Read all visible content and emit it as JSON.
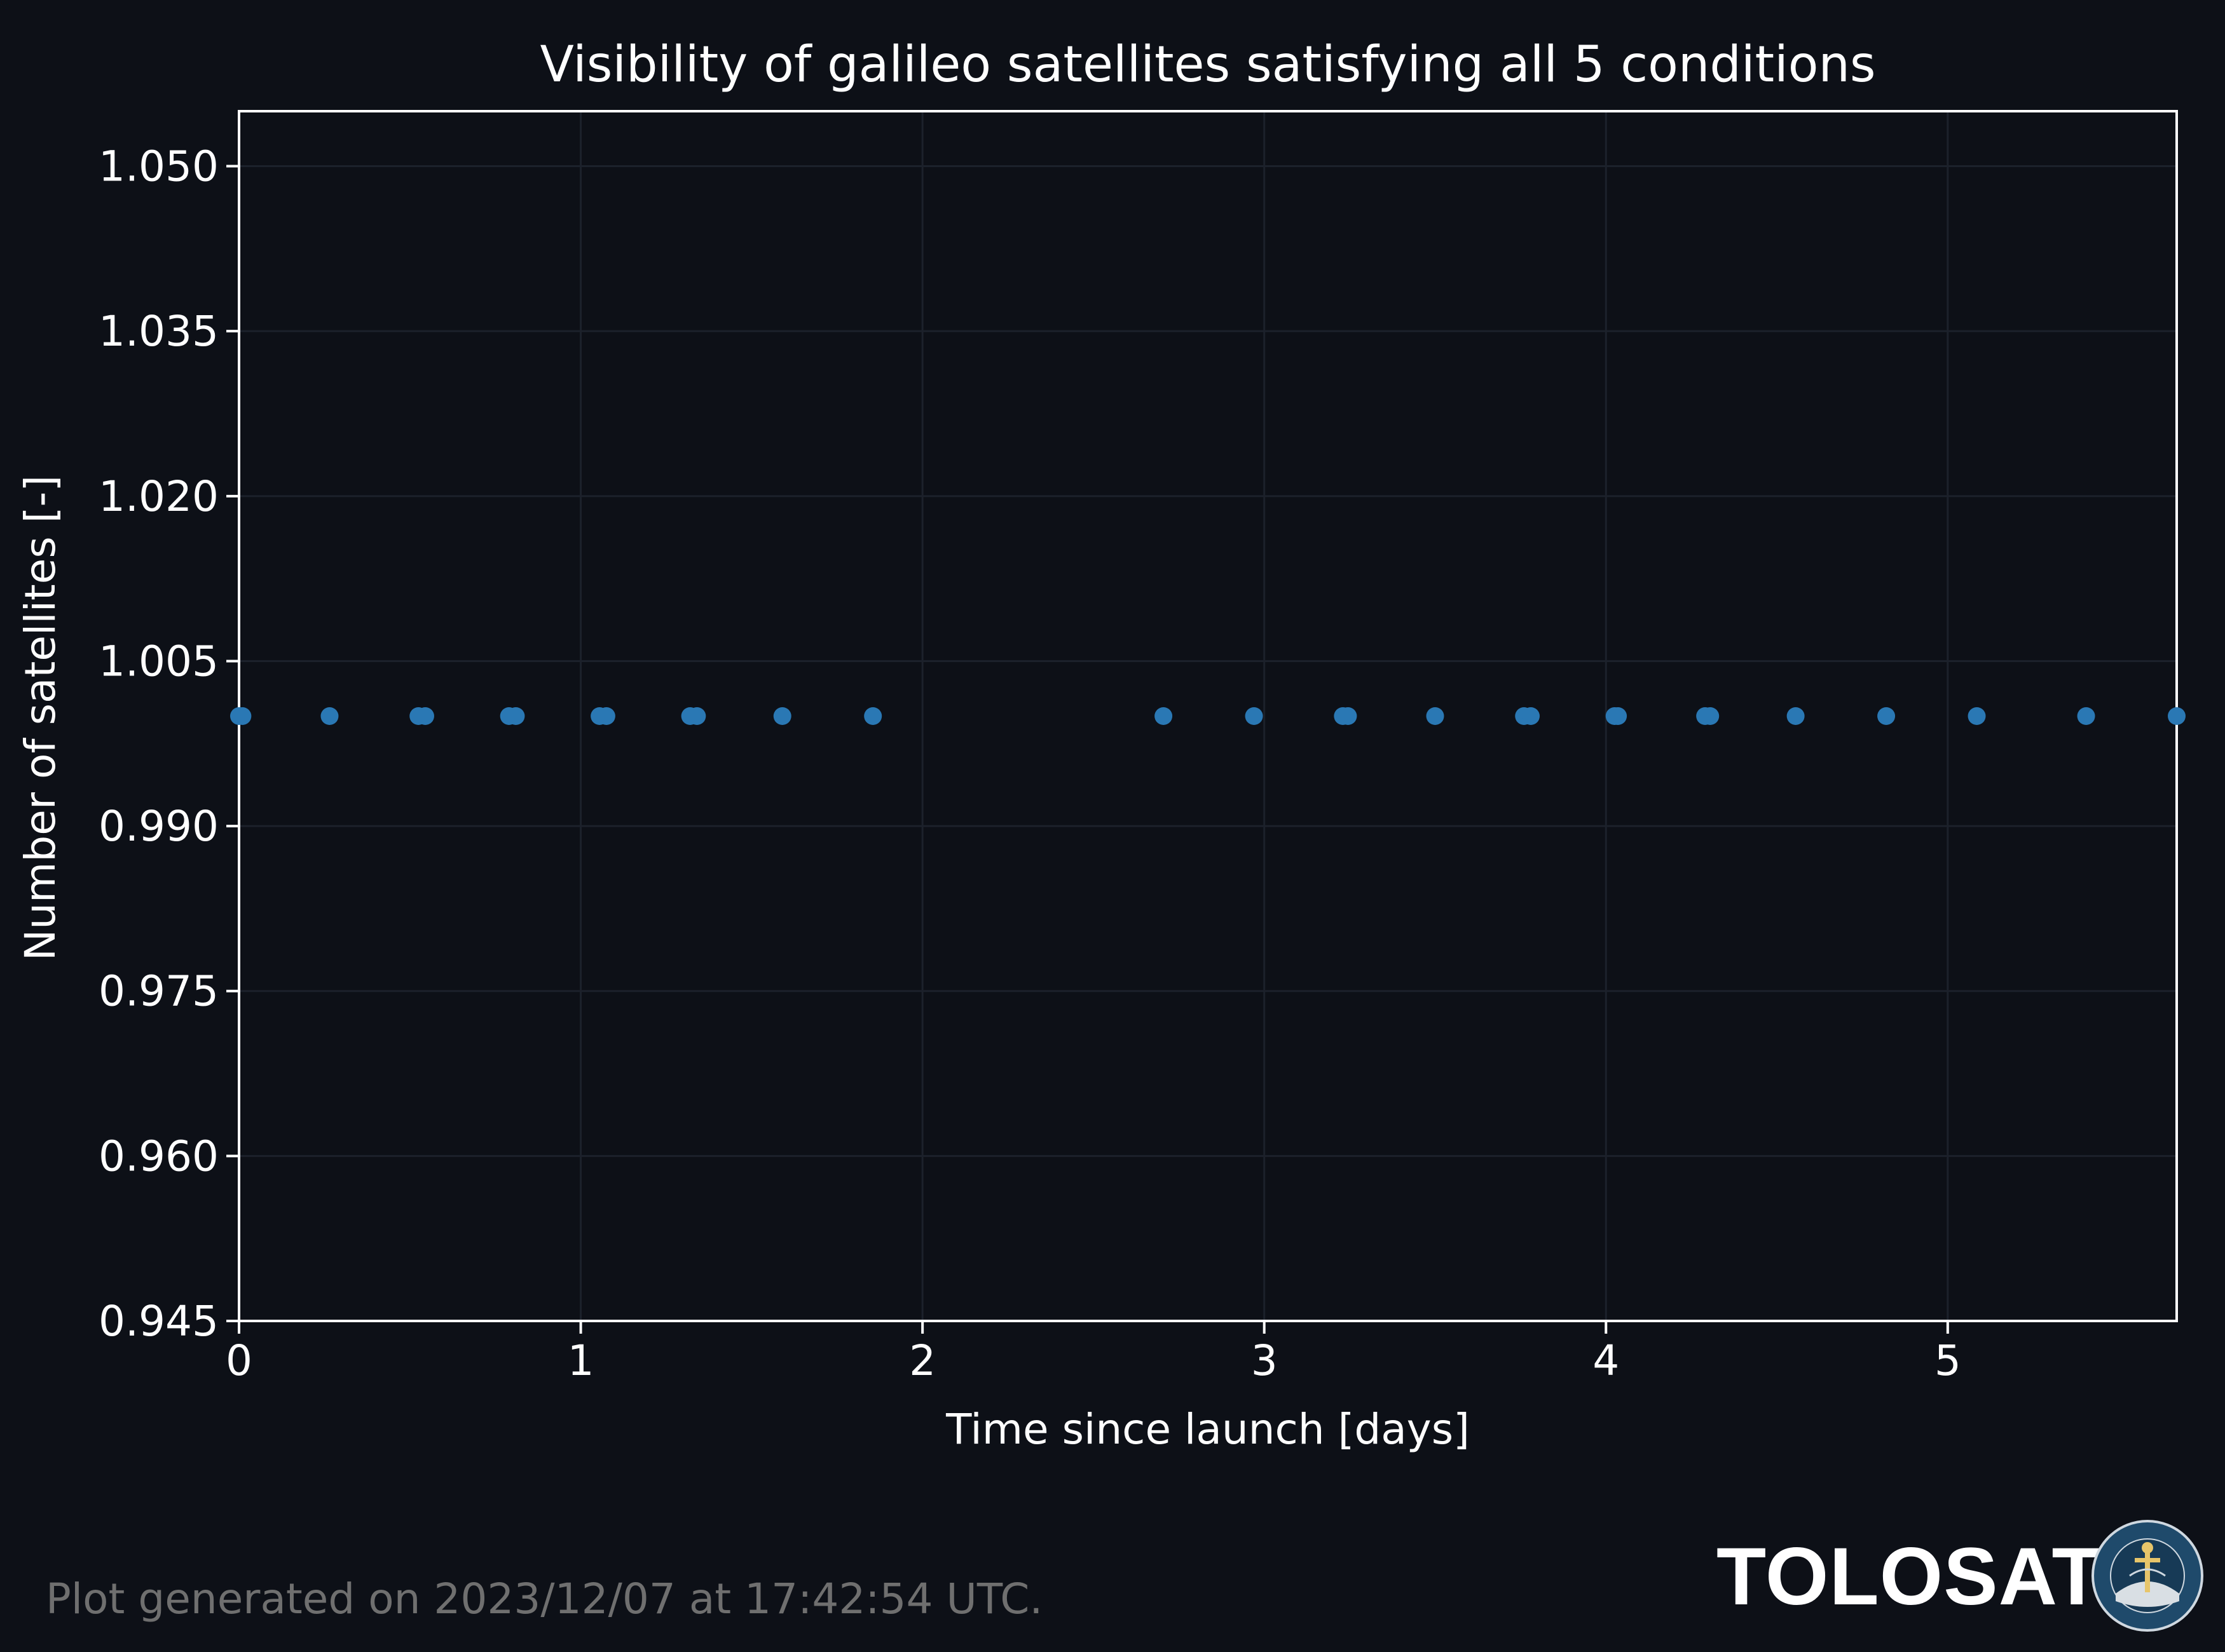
{
  "chart_data": {
    "type": "scatter",
    "title": "Visibility of galileo satellites satisfying all 5 conditions",
    "xlabel": "Time since launch [days]",
    "ylabel": "Number of satellites [-]",
    "xlim": [
      0,
      5.67
    ],
    "ylim": [
      0.945,
      1.055
    ],
    "xticks": [
      0,
      1,
      2,
      3,
      4,
      5
    ],
    "xtick_labels": [
      "0",
      "1",
      "2",
      "3",
      "4",
      "5"
    ],
    "yticks": [
      0.945,
      0.96,
      0.975,
      0.99,
      1.005,
      1.02,
      1.035,
      1.05
    ],
    "ytick_labels": [
      "0.945",
      "0.960",
      "0.975",
      "0.990",
      "1.005",
      "1.020",
      "1.035",
      "1.050"
    ],
    "grid": true,
    "series": [
      {
        "color": "#2a78b4",
        "points": [
          {
            "x": 0.0,
            "y": 1.0
          },
          {
            "x": 0.01,
            "y": 1.0
          },
          {
            "x": 0.265,
            "y": 1.0
          },
          {
            "x": 0.525,
            "y": 1.0
          },
          {
            "x": 0.545,
            "y": 1.0
          },
          {
            "x": 0.79,
            "y": 1.0
          },
          {
            "x": 0.81,
            "y": 1.0
          },
          {
            "x": 1.055,
            "y": 1.0
          },
          {
            "x": 1.075,
            "y": 1.0
          },
          {
            "x": 1.32,
            "y": 1.0
          },
          {
            "x": 1.34,
            "y": 1.0
          },
          {
            "x": 1.59,
            "y": 1.0
          },
          {
            "x": 1.855,
            "y": 1.0
          },
          {
            "x": 2.705,
            "y": 1.0
          },
          {
            "x": 2.97,
            "y": 1.0
          },
          {
            "x": 3.23,
            "y": 1.0
          },
          {
            "x": 3.245,
            "y": 1.0
          },
          {
            "x": 3.5,
            "y": 1.0
          },
          {
            "x": 3.76,
            "y": 1.0
          },
          {
            "x": 3.78,
            "y": 1.0
          },
          {
            "x": 4.025,
            "y": 1.0
          },
          {
            "x": 4.035,
            "y": 1.0
          },
          {
            "x": 4.29,
            "y": 1.0
          },
          {
            "x": 4.305,
            "y": 1.0
          },
          {
            "x": 4.555,
            "y": 1.0
          },
          {
            "x": 4.82,
            "y": 1.0
          },
          {
            "x": 5.085,
            "y": 1.0
          },
          {
            "x": 5.405,
            "y": 1.0
          },
          {
            "x": 5.67,
            "y": 1.0
          }
        ]
      }
    ]
  },
  "colors": {
    "background": "#0d1017",
    "axes": "#ffffff",
    "grid": "#1c212b",
    "marker": "#2a78b4",
    "text": "#ffffff",
    "footer": "#6f6f6f"
  },
  "footer": {
    "generated_text": "Plot generated on 2023/12/07 at 17:42:54 UTC.",
    "brand": "TOLOSAT",
    "seal_text_top": "ASTRE-CC SUPAERO",
    "seal_text_bottom": "TOLOSAT"
  }
}
